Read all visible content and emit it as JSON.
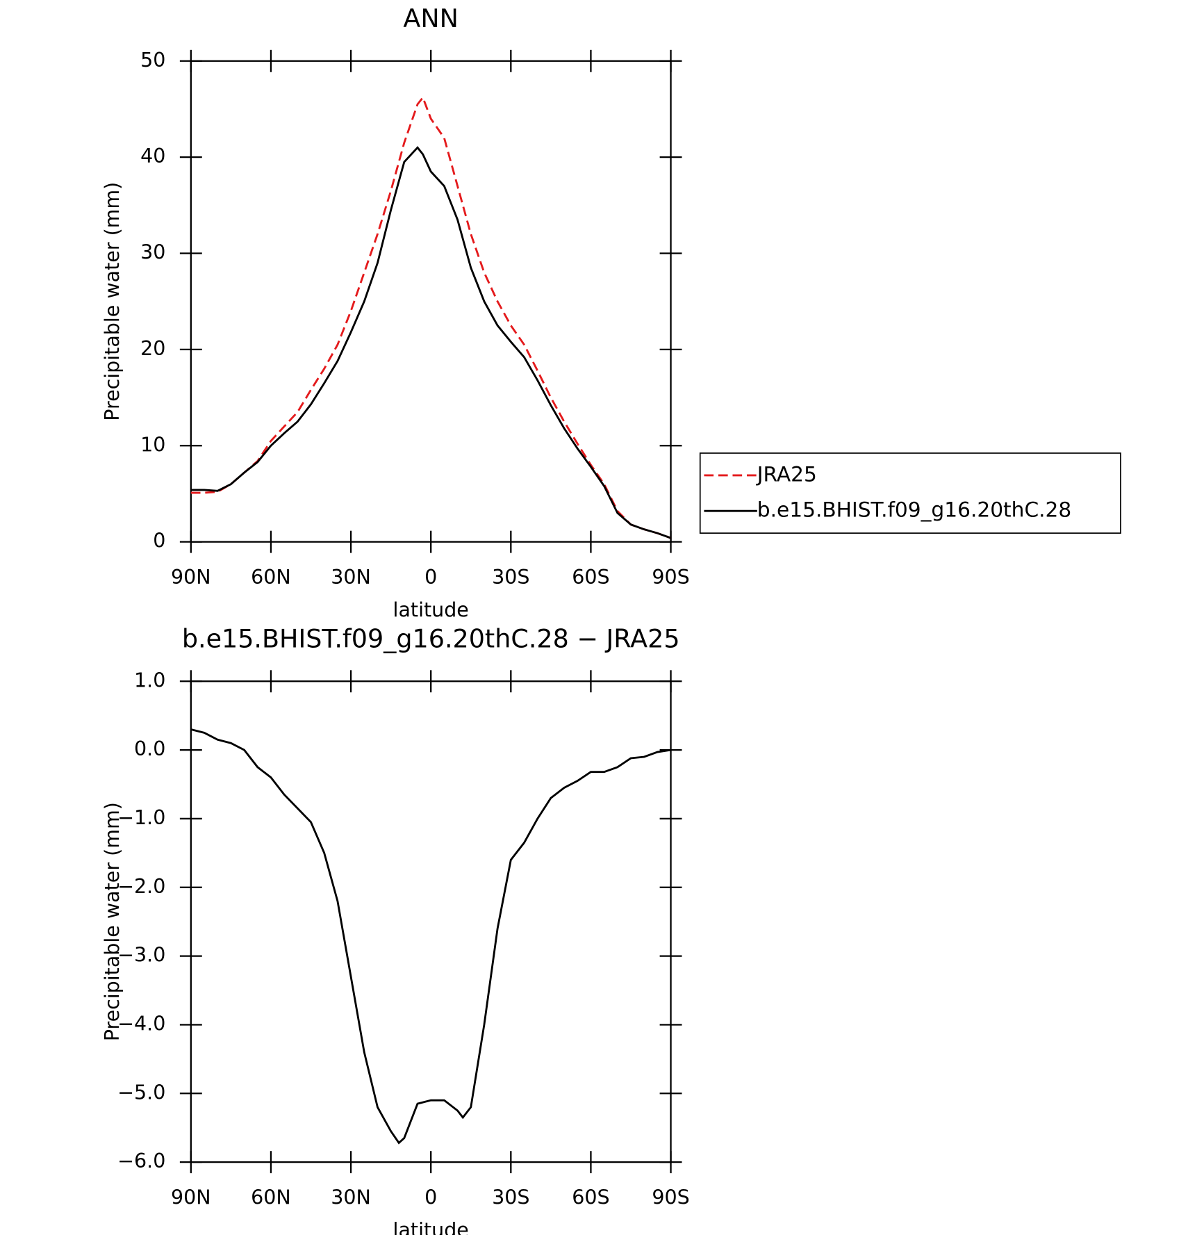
{
  "chart_data": [
    {
      "type": "line",
      "title": "ANN",
      "x_label": "latitude",
      "y_label": "Precipitable water (mm)",
      "x": [
        90,
        85,
        80,
        75,
        70,
        65,
        60,
        55,
        50,
        45,
        40,
        35,
        30,
        25,
        20,
        15,
        10,
        5,
        3,
        0,
        -5,
        -10,
        -15,
        -20,
        -25,
        -30,
        -35,
        -40,
        -45,
        -50,
        -55,
        -60,
        -65,
        -70,
        -75,
        -80,
        -85,
        -90
      ],
      "series": [
        {
          "name": "JRA25",
          "color": "#e41a1c",
          "dash": true,
          "values": [
            5.1,
            5.1,
            5.2,
            6.0,
            7.2,
            8.4,
            10.5,
            12.0,
            13.5,
            15.8,
            18.0,
            20.5,
            24.0,
            28.0,
            32.0,
            36.5,
            41.5,
            45.5,
            46.2,
            44.0,
            42.0,
            37.0,
            32.0,
            28.0,
            25.0,
            22.5,
            20.5,
            17.8,
            15.0,
            12.5,
            10.2,
            8.0,
            6.0,
            3.2,
            1.8,
            1.3,
            0.9,
            0.4
          ]
        },
        {
          "name": "b.e15.BHIST.f09_g16.20thC.28",
          "color": "#000000",
          "dash": false,
          "values": [
            5.4,
            5.4,
            5.3,
            6.0,
            7.2,
            8.3,
            10.0,
            11.3,
            12.5,
            14.3,
            16.5,
            18.8,
            21.8,
            25.0,
            29.0,
            34.5,
            39.5,
            41.0,
            40.3,
            38.5,
            37.0,
            33.5,
            28.5,
            25.0,
            22.5,
            20.8,
            19.2,
            16.8,
            14.2,
            11.8,
            9.7,
            7.8,
            5.8,
            3.0,
            1.8,
            1.3,
            0.9,
            0.4
          ]
        }
      ],
      "xlim": [
        90,
        -90
      ],
      "xticks": [
        {
          "value": 90,
          "label": "90N"
        },
        {
          "value": 60,
          "label": "60N"
        },
        {
          "value": 30,
          "label": "30N"
        },
        0,
        {
          "value": -30,
          "label": "30S"
        },
        {
          "value": -60,
          "label": "60S"
        },
        {
          "value": -90,
          "label": "90S"
        }
      ],
      "ylim": [
        0,
        50
      ],
      "yticks": [
        0,
        10,
        20,
        30,
        40,
        50
      ],
      "legend": "outside-right"
    },
    {
      "type": "line",
      "title": "b.e15.BHIST.f09_g16.20thC.28 − JRA25",
      "x_label": "latitude",
      "y_label": "Precipitable water (mm)",
      "x": [
        90,
        85,
        80,
        75,
        70,
        65,
        60,
        55,
        50,
        45,
        40,
        35,
        30,
        25,
        20,
        15,
        12,
        10,
        5,
        0,
        -5,
        -10,
        -12,
        -15,
        -20,
        -25,
        -30,
        -35,
        -40,
        -45,
        -50,
        -55,
        -60,
        -65,
        -70,
        -75,
        -80,
        -85,
        -90
      ],
      "series": [
        {
          "name": null,
          "color": "#000000",
          "dash": false,
          "values": [
            0.3,
            0.25,
            0.15,
            0.1,
            0.0,
            -0.25,
            -0.4,
            -0.65,
            -0.85,
            -1.05,
            -1.5,
            -2.2,
            -3.3,
            -4.4,
            -5.2,
            -5.55,
            -5.72,
            -5.65,
            -5.15,
            -5.1,
            -5.1,
            -5.25,
            -5.35,
            -5.2,
            -4.0,
            -2.6,
            -1.6,
            -1.35,
            -1.0,
            -0.7,
            -0.55,
            -0.45,
            -0.32,
            -0.32,
            -0.25,
            -0.12,
            -0.1,
            -0.03,
            0.0
          ]
        }
      ],
      "xlim": [
        90,
        -90
      ],
      "xticks": [
        {
          "value": 90,
          "label": "90N"
        },
        {
          "value": 60,
          "label": "60N"
        },
        {
          "value": 30,
          "label": "30N"
        },
        0,
        {
          "value": -30,
          "label": "30S"
        },
        {
          "value": -60,
          "label": "60S"
        },
        {
          "value": -90,
          "label": "90S"
        }
      ],
      "ylim": [
        -6.0,
        1.0
      ],
      "yticks": [
        {
          "value": -6,
          "label": "−6.0"
        },
        {
          "value": -5,
          "label": "−5.0"
        },
        {
          "value": -4,
          "label": "−4.0"
        },
        {
          "value": -3,
          "label": "−3.0"
        },
        {
          "value": -2,
          "label": "−2.0"
        },
        {
          "value": -1,
          "label": "−1.0"
        },
        {
          "value": 0,
          "label": "0.0"
        },
        {
          "value": 1,
          "label": "1.0"
        }
      ]
    }
  ]
}
